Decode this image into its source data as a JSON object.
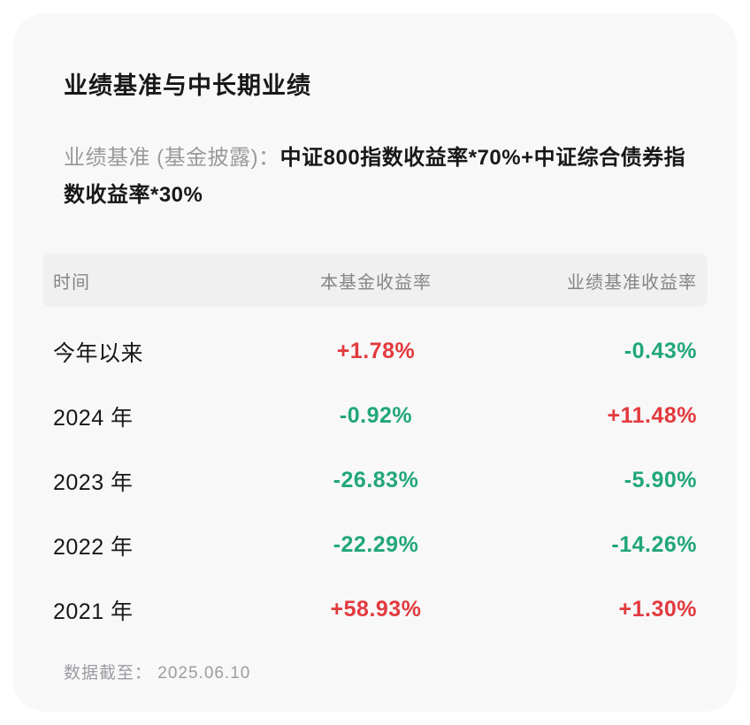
{
  "card": {
    "title": "业绩基准与中长期业绩",
    "benchmark_label": "业绩基准 (基金披露)：",
    "benchmark_formula": "中证800指数收益率*70%+中证综合债券指数收益率*30%",
    "footer": "数据截至： 2025.06.10"
  },
  "table": {
    "headers": [
      "时间",
      "本基金收益率",
      "业绩基准收益率"
    ],
    "rows": [
      {
        "period": "今年以来",
        "fund_return": "+1.78%",
        "fund_trend": "up",
        "benchmark_return": "-0.43%",
        "benchmark_trend": "down"
      },
      {
        "period": "2024 年",
        "fund_return": "-0.92%",
        "fund_trend": "down",
        "benchmark_return": "+11.48%",
        "benchmark_trend": "up"
      },
      {
        "period": "2023 年",
        "fund_return": "-26.83%",
        "fund_trend": "down",
        "benchmark_return": "-5.90%",
        "benchmark_trend": "down"
      },
      {
        "period": "2022 年",
        "fund_return": "-22.29%",
        "fund_trend": "down",
        "benchmark_return": "-14.26%",
        "benchmark_trend": "down"
      },
      {
        "period": "2021 年",
        "fund_return": "+58.93%",
        "fund_trend": "up",
        "benchmark_return": "+1.30%",
        "benchmark_trend": "up"
      }
    ]
  },
  "colors": {
    "up_red": "#e23a3e",
    "down_green": "#21a777",
    "card_background": "#f8f8f9",
    "header_background": "#f0f0f1",
    "header_text": "#858585",
    "primary_text": "#181818",
    "muted_text": "#9a9a9a",
    "footer_text": "#9c9ca1"
  }
}
